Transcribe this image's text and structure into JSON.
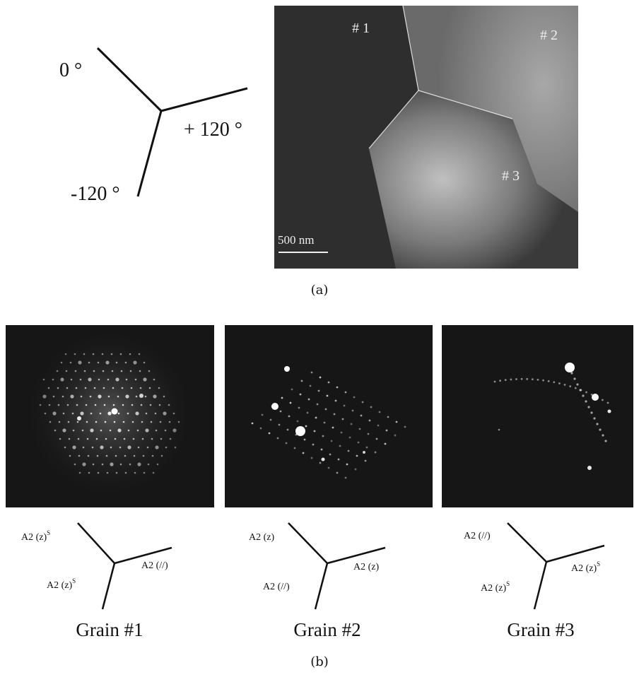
{
  "panel_a": {
    "diagram": {
      "top": "0 °",
      "right": "+ 120 °",
      "bottom": "-120 °"
    },
    "micrograph": {
      "grain_1": "# 1",
      "grain_2": "# 2",
      "grain_3": "# 3",
      "scale_bar": "500 nm"
    },
    "caption": "(a)"
  },
  "panel_b": {
    "grains": [
      {
        "title": "Grain #1",
        "labels": {
          "top": {
            "text": "A2 (z)",
            "sup": "S"
          },
          "right": {
            "text": "A2 (//)"
          },
          "bottom": {
            "text": "A2 (z)",
            "sup": "S"
          }
        }
      },
      {
        "title": "Grain #2",
        "labels": {
          "top": {
            "text": "A2 (z)"
          },
          "right": {
            "text": "A2 (z)"
          },
          "bottom": {
            "text": "A2 (//)"
          }
        }
      },
      {
        "title": "Grain #3",
        "labels": {
          "top": {
            "text": "A2 (//)"
          },
          "right": {
            "text": "A2 (z)",
            "sup": "S"
          },
          "bottom": {
            "text": "A2 (z)",
            "sup": "S"
          }
        }
      }
    ],
    "caption": "(b)"
  }
}
